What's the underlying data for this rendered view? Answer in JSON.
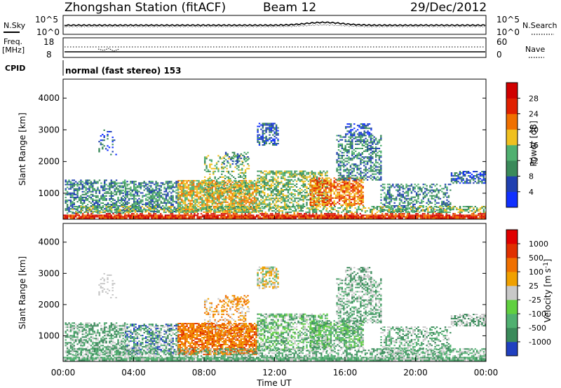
{
  "header": {
    "station_title": "Zhongshan Station (fitACF)",
    "beam": "Beam 12",
    "date": "29/Dec/2012"
  },
  "noise_panel": {
    "left_label": "N.Sky",
    "right_label": "N.Search",
    "tick_top": "10^5",
    "tick_bottom": "10^0",
    "right_tick_top": "10^5",
    "right_tick_bottom": "10^0"
  },
  "freq_panel": {
    "label_line1": "Freq.",
    "label_line2": "[MHz]",
    "right_label": "Nave",
    "tick_top": "18",
    "tick_bottom": "8",
    "right_tick_top": "60",
    "right_tick_bottom": "0"
  },
  "cpid_panel": {
    "label": "CPID",
    "mode_text": "normal (fast stereo) 153"
  },
  "chart_data": [
    {
      "type": "heatmap",
      "quantity": "Power",
      "ylabel": "Slant Range [km]",
      "xlabel": "",
      "xlim": [
        "00:00",
        "24:00"
      ],
      "ylim": [
        180,
        4600
      ],
      "y_ticks": [
        "1000",
        "2000",
        "3000",
        "4000"
      ],
      "colorbar": {
        "label": "Power [dB]",
        "range": [
          0,
          32
        ],
        "tick_labels": [
          "4",
          "8",
          "12",
          "16",
          "20",
          "24",
          "28"
        ],
        "colors": [
          "#1030ff",
          "#2040b0",
          "#3a8a5a",
          "#50b070",
          "#f0c020",
          "#f07000",
          "#e02000",
          "#d00000"
        ]
      }
    },
    {
      "type": "heatmap",
      "quantity": "Velocity",
      "ylabel": "Slant Range [km]",
      "xlabel": "Time UT",
      "xlim": [
        "00:00",
        "24:00"
      ],
      "ylim": [
        180,
        4600
      ],
      "x_ticks": [
        "00:00",
        "04:00",
        "08:00",
        "12:00",
        "16:00",
        "20:00",
        "00:00"
      ],
      "y_ticks": [
        "1000",
        "2000",
        "3000",
        "4000"
      ],
      "colorbar": {
        "label": "Velocity [m s^-1]",
        "tick_labels": [
          "1000",
          "500",
          "100",
          "25",
          "-25",
          "-100",
          "-500",
          "-1000"
        ],
        "colors": [
          "#2040c0",
          "#3a8a5a",
          "#50b070",
          "#60d040",
          "#c8c8c8",
          "#f0a000",
          "#f07000",
          "#e03000",
          "#e00000"
        ]
      }
    }
  ]
}
